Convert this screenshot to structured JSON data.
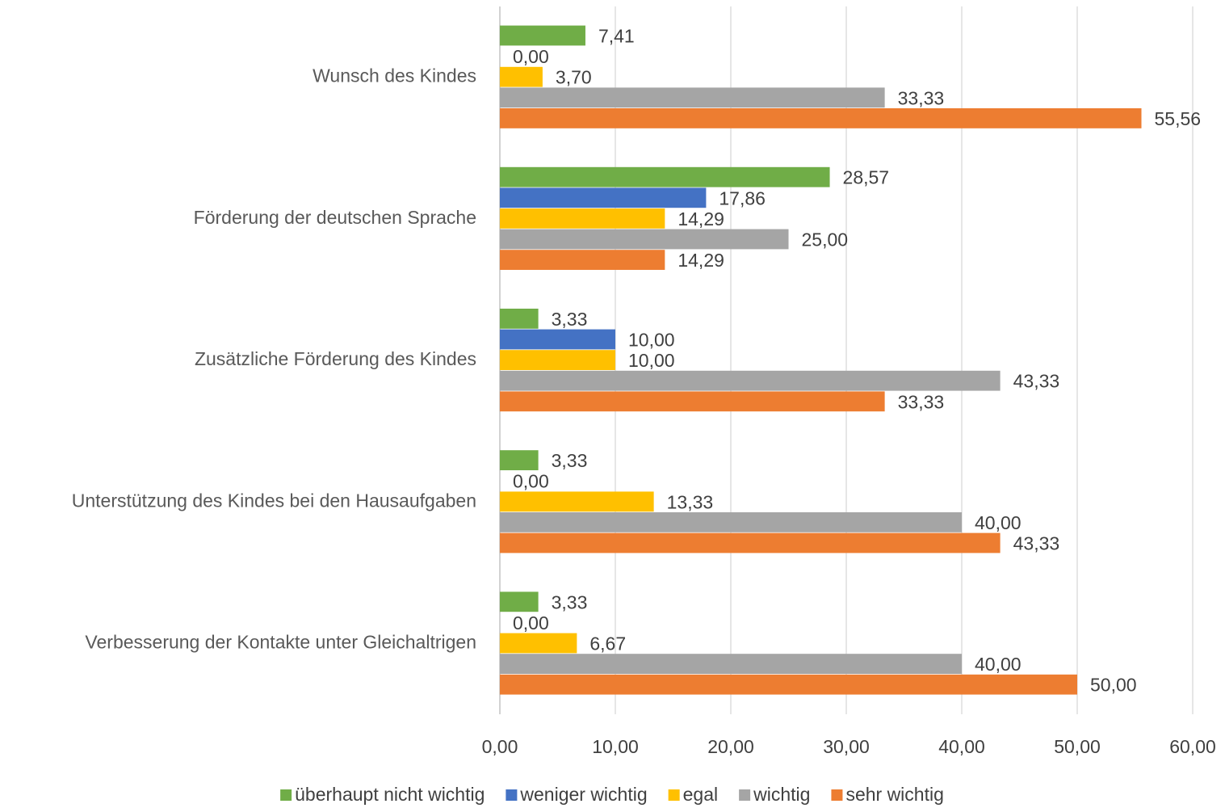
{
  "chart_data": {
    "type": "hbar",
    "categories": [
      "Wunsch des Kindes",
      "Förderung der deutschen Sprache",
      "Zusätzliche Förderung des Kindes",
      "Unterstützung des Kindes bei den Hausaufgaben",
      "Verbesserung der Kontakte unter Gleichaltrigen"
    ],
    "series": [
      {
        "name": "überhaupt nicht wichtig",
        "color": "#70ad47",
        "values": [
          7.41,
          28.57,
          3.33,
          3.33,
          3.33
        ],
        "value_labels": [
          "7,41",
          "28,57",
          "3,33",
          "3,33",
          "3,33"
        ]
      },
      {
        "name": "weniger wichtig",
        "color": "#4472c4",
        "values": [
          0,
          17.86,
          10,
          0,
          0
        ],
        "value_labels": [
          "0,00",
          "17,86",
          "10,00",
          "0,00",
          "0,00"
        ]
      },
      {
        "name": "egal",
        "color": "#ffc000",
        "values": [
          3.7,
          14.29,
          10,
          13.33,
          6.67
        ],
        "value_labels": [
          "3,70",
          "14,29",
          "10,00",
          "13,33",
          "6,67"
        ]
      },
      {
        "name": "wichtig",
        "color": "#a5a5a5",
        "values": [
          33.33,
          25,
          43.33,
          40,
          40
        ],
        "value_labels": [
          "33,33",
          "25,00",
          "43,33",
          "40,00",
          "40,00"
        ]
      },
      {
        "name": "sehr wichtig",
        "color": "#ed7d31",
        "values": [
          55.56,
          14.29,
          33.33,
          43.33,
          50
        ],
        "value_labels": [
          "55,56",
          "14,29",
          "33,33",
          "43,33",
          "50,00"
        ]
      }
    ],
    "xlim": [
      0,
      60
    ],
    "xticks": [
      {
        "value": 0,
        "label": "0,00"
      },
      {
        "value": 10,
        "label": "10,00"
      },
      {
        "value": 20,
        "label": "20,00"
      },
      {
        "value": 30,
        "label": "30,00"
      },
      {
        "value": 40,
        "label": "40,00"
      },
      {
        "value": 50,
        "label": "50,00"
      },
      {
        "value": 60,
        "label": "60,00"
      }
    ],
    "grid": true,
    "legend": "bottom"
  }
}
